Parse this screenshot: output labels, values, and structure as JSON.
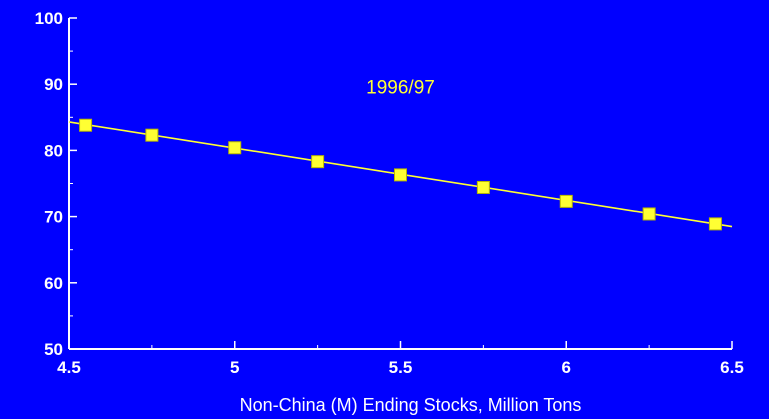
{
  "colors": {
    "background": "#0000FF",
    "axis": "#FFFFFF",
    "series": "#FFFF33",
    "marker_edge": "#B8B800",
    "text": "#FFFFFF"
  },
  "chart_data": {
    "type": "line",
    "title": "",
    "xlabel": "Non-China (M) Ending Stocks, Million Tons",
    "ylabel": "",
    "xlim": [
      4.5,
      6.5
    ],
    "ylim": [
      50,
      100
    ],
    "x_ticks": [
      "4.5",
      "5",
      "5.5",
      "6",
      "6.5"
    ],
    "y_ticks": [
      "50",
      "60",
      "70",
      "80",
      "90",
      "100"
    ],
    "grid": false,
    "annotation": "1996/97",
    "series": [
      {
        "name": "",
        "x": [
          4.55,
          4.75,
          5.0,
          5.25,
          5.5,
          5.75,
          6.0,
          6.25,
          6.45
        ],
        "y": [
          83.8,
          82.3,
          80.4,
          78.3,
          76.3,
          74.4,
          72.3,
          70.4,
          68.9
        ]
      }
    ],
    "trend_line": {
      "x": [
        4.5,
        6.5
      ],
      "y": [
        84.3,
        68.5
      ]
    }
  }
}
